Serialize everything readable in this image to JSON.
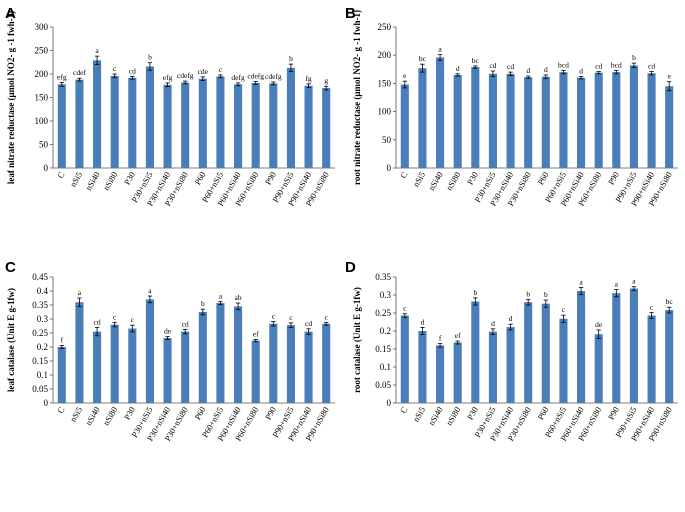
{
  "chart_data": [
    {
      "type": "bar",
      "panel": "A",
      "ylabel": "leaf nitrate reductase (μmol NO2- g -1 fwh-1)",
      "ylim": [
        0,
        300
      ],
      "yticks": [
        0,
        50,
        100,
        150,
        200,
        250,
        300
      ],
      "categories": [
        "C",
        "nSi5",
        "nSi40",
        "nSi80",
        "P30",
        "P30+nSi5",
        "P30+nSi40",
        "P30+nSi80",
        "P60",
        "P60+nSi5",
        "P60+nSi40",
        "P60+nSi80",
        "P90",
        "P90+nSi5",
        "P90+nSi40",
        "P90+nSi80"
      ],
      "values": [
        178,
        188,
        229,
        196,
        192,
        216,
        177,
        182,
        190,
        195,
        178,
        181,
        180,
        213,
        175,
        170
      ],
      "errors": [
        4,
        3,
        9,
        4,
        3,
        8,
        4,
        3,
        4,
        3,
        3,
        3,
        3,
        8,
        4,
        4
      ],
      "labels": [
        "efg",
        "cdef",
        "a",
        "c",
        "cd",
        "b",
        "efg",
        "cdefg",
        "cde",
        "c",
        "defg",
        "cdefg",
        "cdefg",
        "b",
        "fg",
        "g"
      ]
    },
    {
      "type": "bar",
      "panel": "B",
      "ylabel": "root nitrate reductase (μmol NO2- g -1 fwh-1)",
      "ylim": [
        0,
        250
      ],
      "yticks": [
        0,
        50,
        100,
        150,
        200,
        250
      ],
      "categories": [
        "C",
        "nSi5",
        "nSi40",
        "nSi80",
        "P30",
        "P30+nSi5",
        "P30+nSi40",
        "P30+nSi80",
        "P60",
        "P60+nSi5",
        "P60+nSi40",
        "P60+nSi80",
        "P90",
        "P90+nSi5",
        "P90+nSi40",
        "P90+nSi80"
      ],
      "values": [
        148,
        177,
        196,
        165,
        179,
        167,
        167,
        161,
        162,
        170,
        160,
        169,
        170,
        182,
        168,
        145
      ],
      "errors": [
        6,
        7,
        5,
        2,
        2,
        5,
        3,
        2,
        3,
        3,
        2,
        2,
        3,
        4,
        3,
        8
      ],
      "labels": [
        "e",
        "bc",
        "a",
        "d",
        "bc",
        "cd",
        "cd",
        "d",
        "d",
        "bcd",
        "d",
        "cd",
        "bcd",
        "b",
        "cd",
        "e"
      ]
    },
    {
      "type": "bar",
      "panel": "C",
      "ylabel": "leaf catalase (Unit E g-1fw)",
      "ylim": [
        0,
        0.45
      ],
      "yticks": [
        0,
        0.05,
        0.1,
        0.15,
        0.2,
        0.25,
        0.3,
        0.35,
        0.4,
        0.45
      ],
      "categories": [
        "C",
        "nSi5",
        "nSi40",
        "nSi80",
        "P30",
        "P30+nSi5",
        "P30+nSi40",
        "P30+nSi80",
        "P60",
        "P60+nSi5",
        "P60+nSi40",
        "P60+nSi80",
        "P90",
        "P90+nSi5",
        "P90+nSi40",
        "P90+nSi80"
      ],
      "values": [
        0.2,
        0.36,
        0.255,
        0.28,
        0.266,
        0.37,
        0.232,
        0.255,
        0.325,
        0.357,
        0.345,
        0.223,
        0.283,
        0.278,
        0.255,
        0.283
      ],
      "errors": [
        0.005,
        0.015,
        0.015,
        0.008,
        0.012,
        0.012,
        0.005,
        0.008,
        0.01,
        0.005,
        0.012,
        0.004,
        0.008,
        0.008,
        0.01,
        0.005
      ],
      "labels": [
        "f",
        "a",
        "cd",
        "c",
        "c",
        "a",
        "de",
        "cd",
        "b",
        "a",
        "ab",
        "ef",
        "c",
        "c",
        "cd",
        "c"
      ]
    },
    {
      "type": "bar",
      "panel": "D",
      "ylabel": "root catalase (Unit E g-1fw)",
      "ylim": [
        0,
        0.35
      ],
      "yticks": [
        0,
        0.05,
        0.1,
        0.15,
        0.2,
        0.25,
        0.3,
        0.35
      ],
      "categories": [
        "C",
        "nSi5",
        "nSi40",
        "nSi80",
        "P30",
        "P30+nSi5",
        "P30+nSi40",
        "P30+nSi80",
        "P60",
        "P60+nSi5",
        "P60+nSi40",
        "P60+nSi80",
        "P90",
        "P90+nSi5",
        "P90+nSi40",
        "P90+nSi80"
      ],
      "values": [
        0.243,
        0.2,
        0.16,
        0.168,
        0.282,
        0.198,
        0.211,
        0.28,
        0.276,
        0.234,
        0.311,
        0.191,
        0.305,
        0.318,
        0.243,
        0.258
      ],
      "errors": [
        0.005,
        0.01,
        0.005,
        0.004,
        0.01,
        0.008,
        0.008,
        0.008,
        0.01,
        0.01,
        0.01,
        0.012,
        0.01,
        0.005,
        0.008,
        0.008
      ],
      "labels": [
        "c",
        "d",
        "f",
        "ef",
        "b",
        "d",
        "d",
        "b",
        "b",
        "c",
        "a",
        "de",
        "a",
        "a",
        "c",
        "bc"
      ]
    }
  ]
}
